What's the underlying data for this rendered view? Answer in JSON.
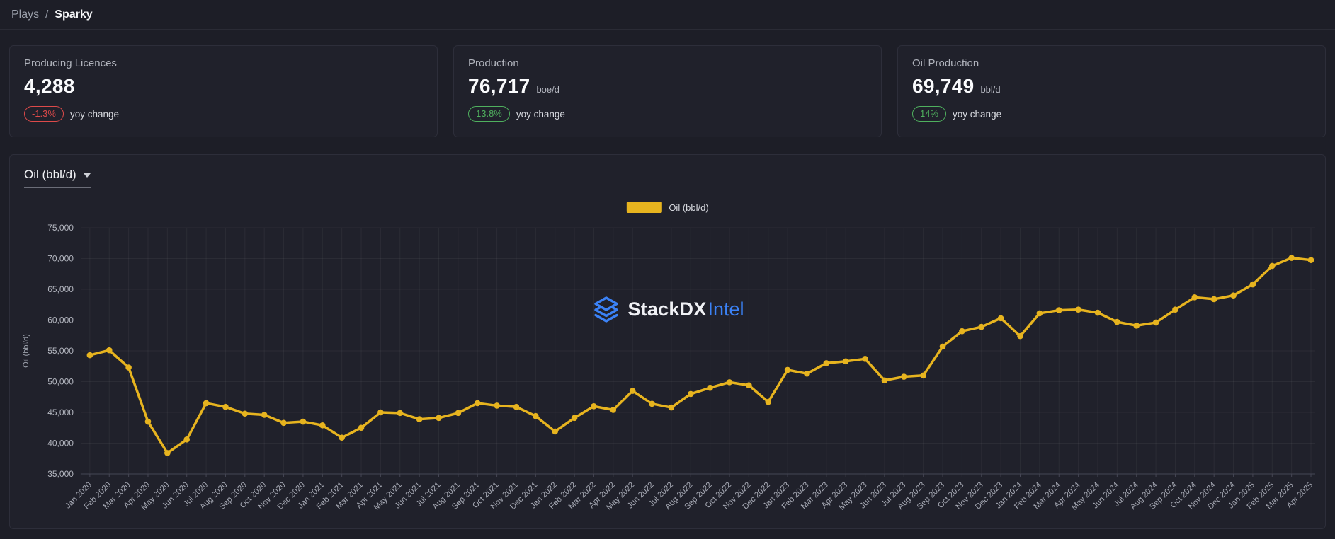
{
  "breadcrumb": {
    "parent": "Plays",
    "separator": "/",
    "current": "Sparky"
  },
  "stat_cards": [
    {
      "title": "Producing Licences",
      "value": "4,288",
      "unit": "",
      "badge": "-1.3%",
      "badge_type": "negative",
      "badge_suffix": "yoy change"
    },
    {
      "title": "Production",
      "value": "76,717",
      "unit": "boe/d",
      "badge": "13.8%",
      "badge_type": "positive",
      "badge_suffix": "yoy change"
    },
    {
      "title": "Oil Production",
      "value": "69,749",
      "unit": "bbl/d",
      "badge": "14%",
      "badge_type": "positive",
      "badge_suffix": "yoy change"
    }
  ],
  "chart_section": {
    "metric_selector": {
      "value": "Oil (bbl/d)",
      "icon": "chevron-down-icon"
    },
    "legend": {
      "label": "Oil (bbl/d)",
      "swatch_color": "#e7b41f"
    },
    "watermark": {
      "brand": "StackDX",
      "suffix": "Intel",
      "icon": "stack-layers-icon"
    }
  },
  "chart_data": {
    "type": "line",
    "title": "",
    "xlabel": "",
    "ylabel": "Oil (bbl/d)",
    "ylim": [
      35000,
      75000
    ],
    "ytick_step": 5000,
    "grid": true,
    "legend_position": "top-center",
    "marker": "circle",
    "x": [
      "Jan 2020",
      "Feb 2020",
      "Mar 2020",
      "Apr 2020",
      "May 2020",
      "Jun 2020",
      "Jul 2020",
      "Aug 2020",
      "Sep 2020",
      "Oct 2020",
      "Nov 2020",
      "Dec 2020",
      "Jan 2021",
      "Feb 2021",
      "Mar 2021",
      "Apr 2021",
      "May 2021",
      "Jun 2021",
      "Jul 2021",
      "Aug 2021",
      "Sep 2021",
      "Oct 2021",
      "Nov 2021",
      "Dec 2021",
      "Jan 2022",
      "Feb 2022",
      "Mar 2022",
      "Apr 2022",
      "May 2022",
      "Jun 2022",
      "Jul 2022",
      "Aug 2022",
      "Sep 2022",
      "Oct 2022",
      "Nov 2022",
      "Dec 2022",
      "Jan 2023",
      "Feb 2023",
      "Mar 2023",
      "Apr 2023",
      "May 2023",
      "Jun 2023",
      "Jul 2023",
      "Aug 2023",
      "Sep 2023",
      "Oct 2023",
      "Nov 2023",
      "Dec 2023",
      "Jan 2024",
      "Feb 2024",
      "Mar 2024",
      "Apr 2024",
      "May 2024",
      "Jun 2024",
      "Jul 2024",
      "Aug 2024",
      "Sep 2024",
      "Oct 2024",
      "Nov 2024",
      "Dec 2024",
      "Jan 2025",
      "Feb 2025",
      "Mar 2025",
      "Apr 2025"
    ],
    "series": [
      {
        "name": "Oil (bbl/d)",
        "color": "#e7b41f",
        "values": [
          54300,
          55100,
          52300,
          43500,
          38400,
          40600,
          46500,
          45900,
          44800,
          44600,
          43300,
          43500,
          42900,
          40900,
          42500,
          45000,
          44900,
          43900,
          44100,
          44900,
          46500,
          46100,
          45900,
          44400,
          41900,
          44100,
          46000,
          45400,
          48500,
          46400,
          45800,
          48000,
          49000,
          49900,
          49400,
          46700,
          51900,
          51300,
          53000,
          53300,
          53700,
          50200,
          50800,
          51000,
          55700,
          58200,
          58900,
          60300,
          57400,
          61100,
          61600,
          61700,
          61200,
          59700,
          59100,
          59600,
          61700,
          63700,
          63400,
          64000,
          65800,
          68800,
          70100,
          69749
        ]
      }
    ]
  },
  "colors": {
    "accent_yellow": "#e7b41f",
    "negative_red": "#dd4a4a",
    "positive_green": "#4fb05e",
    "brand_blue": "#3b82f6",
    "background": "#1d1e27",
    "card_background": "#20212b"
  }
}
